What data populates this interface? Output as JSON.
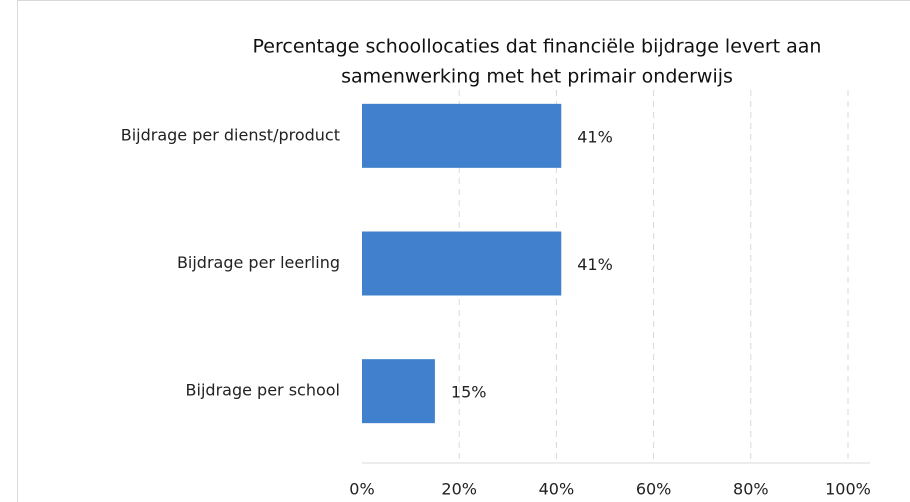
{
  "chart_data": {
    "type": "bar",
    "orientation": "horizontal",
    "title": [
      "Percentage schoollocaties dat financiële bijdrage levert aan",
      "samenwerking met het primair onderwijs"
    ],
    "categories": [
      "Bijdrage per dienst/product",
      "Bijdrage per leerling",
      "Bijdrage per school"
    ],
    "values": [
      41,
      41,
      15
    ],
    "value_labels": [
      "41%",
      "41%",
      "15%"
    ],
    "color": "#4080cc",
    "xlim": [
      0,
      100
    ],
    "xticks": [
      {
        "value": 0,
        "label": "0%"
      },
      {
        "value": 20,
        "label": "20%"
      },
      {
        "value": 40,
        "label": "40%"
      },
      {
        "value": 60,
        "label": "60%"
      },
      {
        "value": 80,
        "label": "80%"
      },
      {
        "value": 100,
        "label": "100%"
      }
    ],
    "grid": true
  }
}
